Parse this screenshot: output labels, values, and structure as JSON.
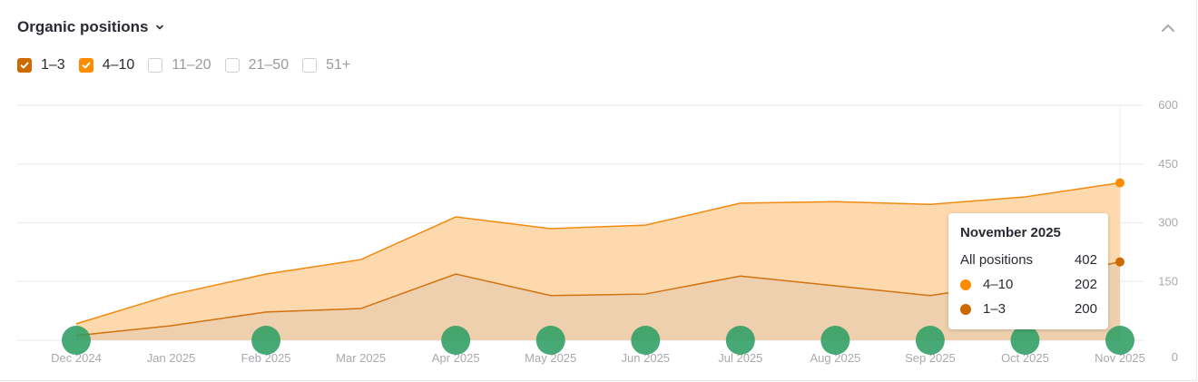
{
  "header": {
    "title": "Organic positions"
  },
  "filters": [
    {
      "label": "1–3",
      "checked": true,
      "color": "#cc6a00"
    },
    {
      "label": "4–10",
      "checked": true,
      "color": "#ff8c00"
    },
    {
      "label": "11–20",
      "checked": false
    },
    {
      "label": "21–50",
      "checked": false
    },
    {
      "label": "51+",
      "checked": false
    }
  ],
  "icons": {
    "title_dropdown": "chevron-down-icon",
    "collapse": "chevron-up-icon",
    "check": "check-icon",
    "event_marker": "circle-marker"
  },
  "tooltip": {
    "title": "November 2025",
    "rows": [
      {
        "label": "All positions",
        "value": "402"
      },
      {
        "label": "4–10",
        "value": "202",
        "color": "#ff8c00"
      },
      {
        "label": "1–3",
        "value": "200",
        "color": "#cc6a00"
      }
    ]
  },
  "colors": {
    "series_4_10_line": "#f28a0f",
    "series_4_10_fill": "#fdd9ad",
    "series_1_3_line": "#d27210",
    "series_1_3_fill": "#eed0ae",
    "markers": "#2e9e63",
    "grid": "#ececec"
  },
  "chart_data": {
    "type": "area",
    "stacked": true,
    "title": "Organic positions",
    "xlabel": "",
    "ylabel": "",
    "ylim": [
      0,
      600
    ],
    "yticks": [
      0,
      150,
      300,
      450,
      600
    ],
    "y_axis_position": "right",
    "grid": true,
    "categories": [
      "Dec 2024",
      "Jan 2025",
      "Feb 2025",
      "Mar 2025",
      "Apr 2025",
      "May 2025",
      "Jun 2025",
      "Jul 2025",
      "Aug 2025",
      "Sep 2025",
      "Oct 2025",
      "Nov 2025"
    ],
    "series": [
      {
        "name": "1–3",
        "values": [
          12,
          37,
          72,
          81,
          169,
          114,
          118,
          164,
          139,
          114,
          150,
          200
        ]
      },
      {
        "name": "4–10",
        "values": [
          30,
          79,
          97,
          125,
          146,
          171,
          176,
          186,
          215,
          233,
          216,
          202
        ]
      }
    ],
    "totals": [
      42,
      116,
      169,
      206,
      315,
      285,
      294,
      350,
      354,
      347,
      366,
      402
    ],
    "event_markers": [
      "Dec 2024",
      "Feb 2025",
      "Apr 2025",
      "May 2025",
      "Jun 2025",
      "Jul 2025",
      "Aug 2025",
      "Sep 2025",
      "Oct 2025",
      "Nov 2025"
    ],
    "highlighted": "Nov 2025"
  }
}
